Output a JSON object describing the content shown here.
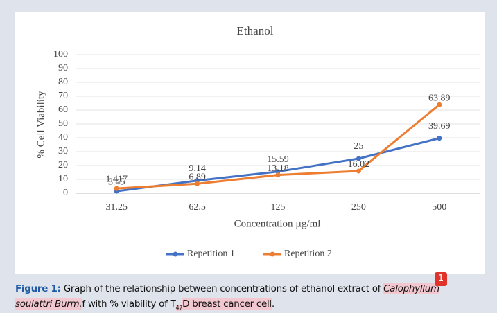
{
  "chart_data": {
    "type": "line",
    "title": "Ethanol",
    "x_label": "Concentration µg/ml",
    "y_label": "% Cell Viability",
    "categories": [
      "31.25",
      "62.5",
      "125",
      "250",
      "500"
    ],
    "series": [
      {
        "name": "Repetition 1",
        "color": "#4472c4",
        "values": [
          1.417,
          9.14,
          15.59,
          25,
          39.69
        ]
      },
      {
        "name": "Repetition 2",
        "color": "#ed7d31",
        "values": [
          3.45,
          6.89,
          13.18,
          16.02,
          63.89
        ]
      }
    ],
    "ylim": [
      0,
      100
    ],
    "yticks": [
      0,
      10,
      20,
      30,
      40,
      50,
      60,
      70,
      80,
      90,
      100
    ],
    "grid": true,
    "legend": "bottom"
  },
  "caption": {
    "label": "Figure 1:",
    "text_1": "Graph of the relationship between concentrations of ethanol extract of",
    "species_1": "Calophyllum",
    "species_2": "soulattri Burm.",
    "text_2": "f with % viability of T",
    "subscript": "47",
    "text_3": "D breast cancer cell",
    "end": ".",
    "badge": "1"
  }
}
